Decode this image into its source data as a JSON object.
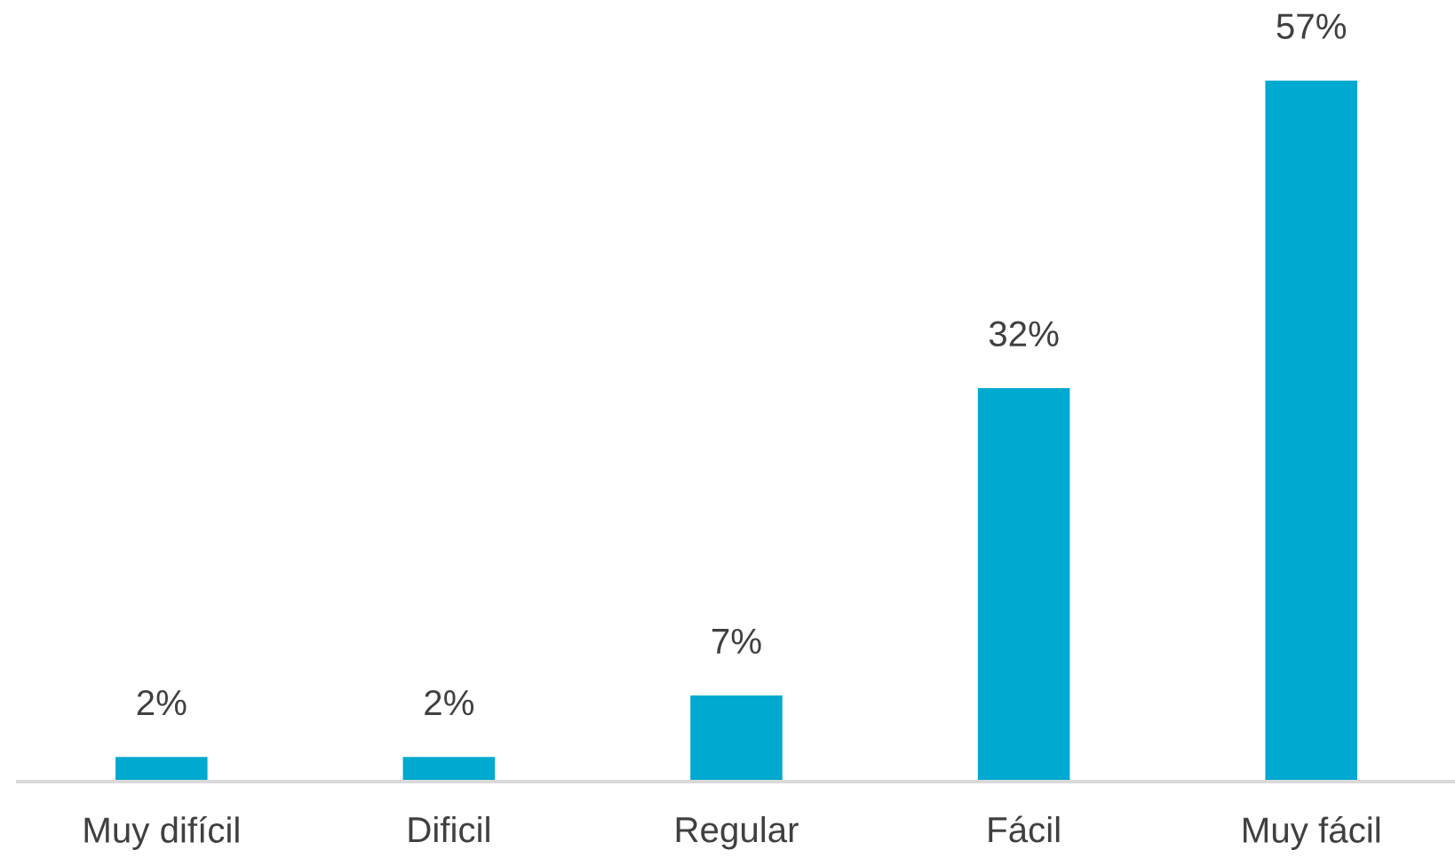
{
  "chart_data": {
    "type": "bar",
    "categories": [
      "Muy difícil",
      "Dificil",
      "Regular",
      "Fácil",
      "Muy fácil"
    ],
    "values": [
      2,
      2,
      7,
      32,
      57
    ],
    "value_labels": [
      "2%",
      "2%",
      "7%",
      "32%",
      "57%"
    ],
    "color": "#00a9cf",
    "grid": false,
    "legend": false
  }
}
